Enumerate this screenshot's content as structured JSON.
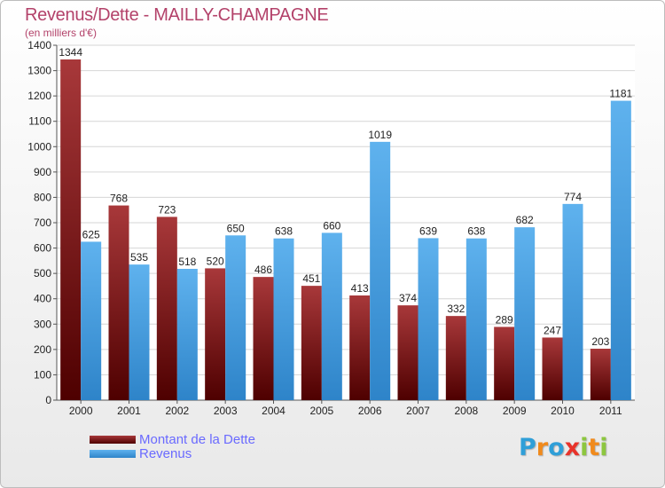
{
  "chart_data": {
    "type": "bar",
    "title": "Revenus/Dette - MAILLY-CHAMPAGNE",
    "ylabel": "(en milliers d'€)",
    "xlabel": "",
    "ylim": [
      0,
      1400
    ],
    "yticks": [
      "0",
      "100",
      "200",
      "300",
      "400",
      "500",
      "600",
      "700",
      "800",
      "900",
      "1000",
      "1100",
      "1200",
      "1300",
      "1400"
    ],
    "categories": [
      "2000",
      "2001",
      "2002",
      "2003",
      "2004",
      "2005",
      "2006",
      "2007",
      "2008",
      "2009",
      "2010",
      "2011"
    ],
    "series": [
      {
        "name": "Montant de la Dette",
        "color": "#8b1a1a",
        "values": [
          1344,
          768,
          723,
          520,
          486,
          451,
          413,
          374,
          332,
          289,
          247,
          203
        ]
      },
      {
        "name": "Revenus",
        "color": "#4da3e6",
        "values": [
          625,
          535,
          518,
          650,
          638,
          660,
          1019,
          639,
          638,
          682,
          774,
          1181
        ]
      }
    ],
    "legend_position": "bottom-left",
    "grid": true
  },
  "brand": {
    "letters": [
      {
        "ch": "P",
        "color": "#2f9fd8"
      },
      {
        "ch": "r",
        "color": "#f08a1c"
      },
      {
        "ch": "o",
        "color": "#2f9fd8"
      },
      {
        "ch": "x",
        "color": "#e8332a"
      },
      {
        "ch": "i",
        "color": "#8dc63f"
      },
      {
        "ch": "t",
        "color": "#f08a1c"
      },
      {
        "ch": "i",
        "color": "#8dc63f"
      }
    ]
  }
}
